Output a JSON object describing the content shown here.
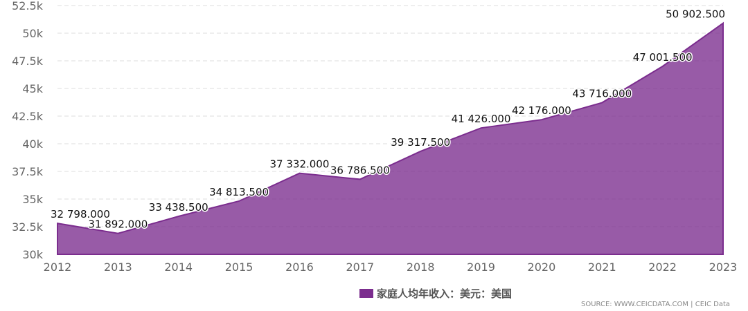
{
  "chart_data": {
    "type": "area",
    "x": [
      "2012",
      "2013",
      "2014",
      "2015",
      "2016",
      "2017",
      "2018",
      "2019",
      "2020",
      "2021",
      "2022",
      "2023"
    ],
    "series": [
      {
        "name": "家庭人均年收入：美元：美国",
        "values": [
          32798.0,
          31892.0,
          33438.5,
          34813.5,
          37332.0,
          36786.5,
          39317.5,
          41426.0,
          42176.0,
          43716.0,
          47001.5,
          50902.5
        ],
        "labels": [
          "32 798.000",
          "31 892.000",
          "33 438.500",
          "34 813.500",
          "37 332.000",
          "36 786.500",
          "39 317.500",
          "41 426.000",
          "42 176.000",
          "43 716.000",
          "47 001.500",
          "50 902.500"
        ]
      }
    ],
    "ylim": [
      30000,
      52500
    ],
    "yticks": [
      {
        "value": 30000,
        "label": "30k"
      },
      {
        "value": 32500,
        "label": "32.5k"
      },
      {
        "value": 35000,
        "label": "35k"
      },
      {
        "value": 37500,
        "label": "37.5k"
      },
      {
        "value": 40000,
        "label": "40k"
      },
      {
        "value": 42500,
        "label": "42.5k"
      },
      {
        "value": 45000,
        "label": "45k"
      },
      {
        "value": 47500,
        "label": "47.5k"
      },
      {
        "value": 50000,
        "label": "50k"
      },
      {
        "value": 52500,
        "label": "52.5k"
      }
    ],
    "grid": true,
    "legend_position": "bottom",
    "color": "#7b2d8e"
  },
  "legend": {
    "label": "家庭人均年收入：美元：美国"
  },
  "source": "SOURCE: WWW.CEICDATA.COM | CEIC Data"
}
